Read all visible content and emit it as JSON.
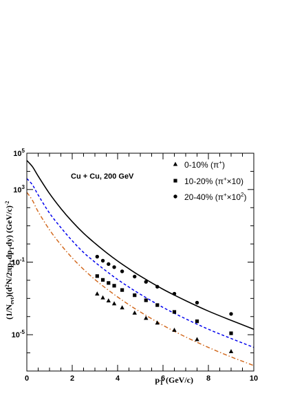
{
  "chart_data": {
    "type": "scatter",
    "annotation": "Cu + Cu, 200 GeV",
    "xlabel": "p_T (GeV/c)",
    "xlabel_main": "p",
    "xlabel_sub": "T",
    "xlabel_rest": " (GeV/c)",
    "ylabel": "(1/N_evt)(d²N/2πp_T dp_T dy) (GeV/c)⁻²",
    "ylabel_text": "(1/N",
    "ylabel_text_sub": "evt",
    "ylabel_text2": ")(d",
    "ylabel_text3": "N/2πp",
    "ylabel_text4": "dp",
    "ylabel_text5": "dy) (GeV/c)",
    "ylabel_sup2": "2",
    "ylabel_sub_T": "T",
    "ylabel_sup_minus2": "-2",
    "xlim": [
      0,
      10
    ],
    "ylim": [
      1e-07,
      100000.0
    ],
    "yscale": "log",
    "grid": false,
    "legend_position": "top-right",
    "x_ticks": [
      "0",
      "2",
      "4",
      "6",
      "8",
      "10"
    ],
    "x_tick_values": [
      0,
      2,
      4,
      6,
      8,
      10
    ],
    "y_ticks": [
      {
        "value": 100000,
        "base": "10",
        "exp": "5"
      },
      {
        "value": 1000,
        "base": "10",
        "exp": "3"
      },
      {
        "value": 0.1,
        "base": "10",
        "exp": "-1"
      },
      {
        "value": 1e-05,
        "base": "10",
        "exp": "-5"
      }
    ],
    "series": [
      {
        "name": "0-10%",
        "legend_main": "0-10% (π",
        "legend_sup": "+",
        "legend_factor": "",
        "legend_factor_sup": "",
        "legend_close": ")",
        "marker": "triangle",
        "line_style": "dash-dot",
        "line_color": "#d2691e",
        "x": [
          3.1,
          3.35,
          3.6,
          3.85,
          4.2,
          4.75,
          5.25,
          5.75,
          6.5,
          7.5,
          9.0
        ],
        "y": [
          0.0018,
          0.0011,
          0.00075,
          0.00052,
          0.00031,
          0.00016,
          8.2e-05,
          4.5e-05,
          1.8e-05,
          5.5e-06,
          1.2e-06
        ]
      },
      {
        "name": "10-20%",
        "legend_main": "10-20% (π",
        "legend_sup": "+",
        "legend_factor": "×10",
        "legend_factor_sup": "",
        "legend_close": ")",
        "marker": "square",
        "line_style": "dashed",
        "line_color": "#0000ee",
        "x": [
          3.1,
          3.35,
          3.6,
          3.85,
          4.2,
          4.75,
          5.25,
          5.75,
          6.5,
          7.5,
          9.0
        ],
        "y": [
          0.017,
          0.0105,
          0.0071,
          0.005,
          0.0029,
          0.0015,
          0.00079,
          0.00043,
          0.00018,
          5.5e-05,
          1.2e-05
        ]
      },
      {
        "name": "20-40%",
        "legend_main": "20-40% (π",
        "legend_sup": "+",
        "legend_factor": "×10",
        "legend_factor_sup": "2",
        "legend_close": ")",
        "marker": "circle",
        "line_style": "solid",
        "line_color": "#000000",
        "x": [
          3.1,
          3.35,
          3.6,
          3.85,
          4.2,
          4.75,
          5.25,
          5.75,
          6.5,
          7.5,
          9.0
        ],
        "y": [
          0.2,
          0.12,
          0.078,
          0.053,
          0.031,
          0.016,
          0.0082,
          0.0044,
          0.0018,
          0.00058,
          0.00014
        ]
      }
    ],
    "fit_curves": [
      {
        "name": "fit-0-10",
        "color": "#d2691e",
        "style": "dash-dot",
        "x": [
          0,
          0.25,
          0.5,
          1,
          1.5,
          2,
          2.5,
          3,
          3.5,
          4,
          4.5,
          5,
          6,
          7,
          8,
          9,
          10
        ],
        "y": [
          700,
          250,
          60,
          6,
          0.9,
          0.17,
          0.04,
          0.011,
          0.0035,
          0.0012,
          0.00045,
          0.00018,
          3.3e-05,
          7.5e-06,
          2e-06,
          6e-07,
          2e-07
        ]
      },
      {
        "name": "fit-10-20",
        "color": "#0000ee",
        "style": "dashed",
        "x": [
          0,
          0.25,
          0.5,
          1,
          1.5,
          2,
          2.5,
          3,
          3.5,
          4,
          4.5,
          5,
          6,
          7,
          8,
          9,
          10
        ],
        "y": [
          4000,
          1800,
          500,
          50,
          8,
          1.5,
          0.34,
          0.1,
          0.032,
          0.011,
          0.0042,
          0.0017,
          0.00032,
          7.5e-05,
          2e-05,
          6.2e-06,
          2e-06
        ]
      },
      {
        "name": "fit-20-40",
        "color": "#000000",
        "style": "solid",
        "x": [
          0,
          0.25,
          0.5,
          1,
          1.5,
          2,
          2.5,
          3,
          3.5,
          4,
          4.5,
          5,
          6,
          7,
          8,
          9,
          10
        ],
        "y": [
          40000,
          18000,
          5500,
          600,
          90,
          17,
          3.9,
          1.1,
          0.34,
          0.115,
          0.043,
          0.017,
          0.0032,
          0.00075,
          0.0002,
          6.2e-05,
          2e-05
        ]
      }
    ]
  }
}
